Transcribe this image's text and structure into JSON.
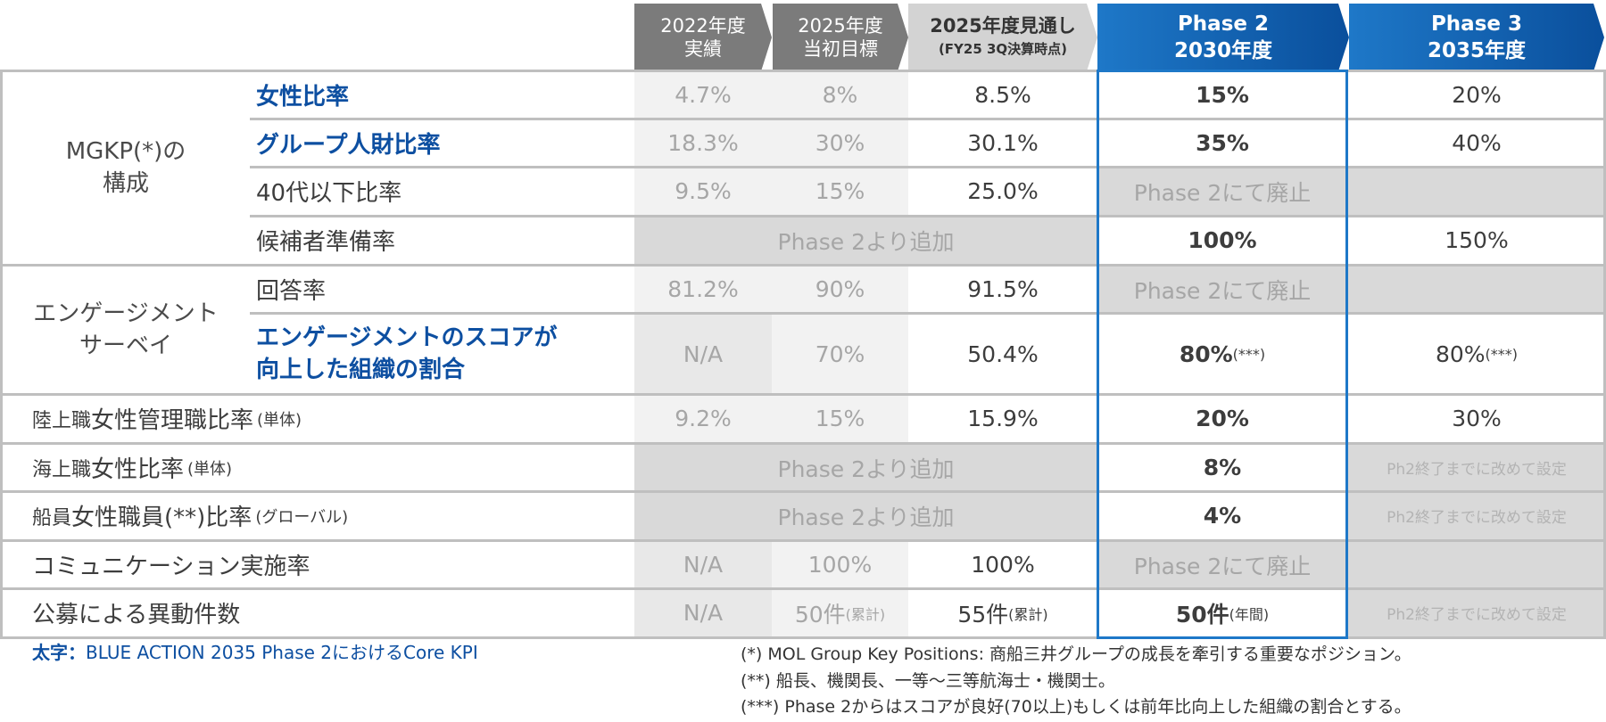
{
  "headers": {
    "fy2022": {
      "line1": "2022年度",
      "line2": "実績"
    },
    "fy2025": {
      "line1": "2025年度",
      "line2": "当初目標"
    },
    "fy2025_outlook": {
      "line1": "2025年度見通し",
      "line2": "(FY25 3Q決算時点)"
    },
    "phase2": {
      "line1": "Phase 2",
      "line2": "2030年度"
    },
    "phase3": {
      "line1": "Phase 3",
      "line2": "2035年度"
    }
  },
  "groups": {
    "mgkp": "MGKP(*)の\n構成",
    "survey": "エンゲージメント\nサーベイ"
  },
  "rows": [
    {
      "label": "女性比率",
      "core": true,
      "v2022": "4.7%",
      "v2025": "8%",
      "outlook": "8.5%",
      "p2": "15%",
      "p3": "20%"
    },
    {
      "label": "グループ人財比率",
      "core": true,
      "v2022": "18.3%",
      "v2025": "30%",
      "outlook": "30.1%",
      "p2": "35%",
      "p3": "40%"
    },
    {
      "label": "40代以下比率",
      "core": false,
      "v2022": "9.5%",
      "v2025": "15%",
      "outlook": "25.0%",
      "p2": "Phase 2にて廃止",
      "p3": ""
    },
    {
      "label": "候補者準備率",
      "core": false,
      "merged": "Phase 2より追加",
      "p2": "100%",
      "p3": "150%"
    },
    {
      "label": "回答率",
      "core": false,
      "v2022": "81.2%",
      "v2025": "90%",
      "outlook": "91.5%",
      "p2": "Phase 2にて廃止",
      "p3": ""
    },
    {
      "label": "エンゲージメントのスコアが\n向上した組織の割合",
      "core": true,
      "v2022": "N/A",
      "v2025": "70%",
      "outlook": "50.4%",
      "p2": "80%",
      "p2_note": "(***)",
      "p3": "80%",
      "p3_note": "(***)"
    },
    {
      "label_prefix": "陸上職 ",
      "label": "女性管理職比率",
      "label_suffix": "(単体)",
      "v2022": "9.2%",
      "v2025": "15%",
      "outlook": "15.9%",
      "p2": "20%",
      "p3": "30%"
    },
    {
      "label_prefix": "海上職 ",
      "label": "女性比率",
      "label_suffix": "(単体)",
      "merged": "Phase 2より追加",
      "p2": "8%",
      "p3": "Ph2終了までに改めて設定"
    },
    {
      "label_prefix": "船員 ",
      "label": "女性職員(**)比率",
      "label_suffix": "(グローバル)",
      "merged": "Phase 2より追加",
      "p2": "4%",
      "p3": "Ph2終了までに改めて設定"
    },
    {
      "label": "コミュニケーション実施率",
      "v2022": "N/A",
      "v2025": "100%",
      "outlook": "100%",
      "p2": "Phase 2にて廃止",
      "p3": ""
    },
    {
      "label": "公募による異動件数",
      "v2022": "N/A",
      "v2025": "50件",
      "v2025_note": "(累計)",
      "outlook": "55件",
      "outlook_note": "(累計)",
      "p2": "50件",
      "p2_note": "(年間)",
      "p3": "Ph2終了までに改めて設定"
    }
  ],
  "footnotes": {
    "legend_bold": "太字：",
    "legend_text": "BLUE ACTION 2035 Phase 2におけるCore KPI",
    "note1": "(*) MOL Group Key Positions: 商船三井グループの成長を牽引する重要なポジション。",
    "note2": "(**) 船長、機関長、一等～三等航海士・機関士。",
    "note3": "(***) Phase 2からはスコアが良好(70以上)もしくは前年比向上した組織の割合とする。"
  },
  "colors": {
    "blue_border": "#1e78c8",
    "core_text": "#0d4fa1",
    "gray_fill": "#d9d9d9"
  }
}
